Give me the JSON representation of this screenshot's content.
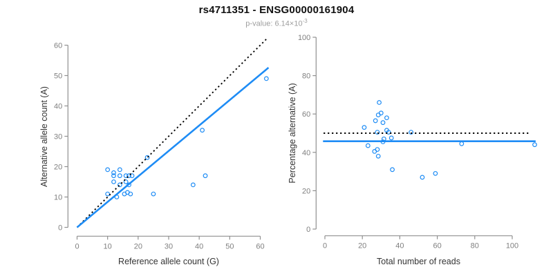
{
  "header": {
    "title": "rs4711351 - ENSG00000161904",
    "p_value_label": "p-value: ",
    "p_value_mantissa": "6.14×10",
    "p_value_exponent": "-3"
  },
  "colors": {
    "point_blue": "#1E8CF5",
    "fit_line_blue": "#1E8CF5",
    "reference_line_black": "#000000",
    "axis_line_gray": "#8f8f8f",
    "tick_label_gray": "#7f7f7f",
    "axis_title_color": "#333333",
    "title_color": "#111111",
    "subtitle_gray": "#9e9e9e"
  },
  "chart_data": [
    {
      "type": "scatter",
      "name": "allele-counts-scatter",
      "xlabel": "Reference allele count (G)",
      "ylabel": "Alternative allele count (A)",
      "xlim": [
        0,
        63
      ],
      "ylim": [
        0,
        63
      ],
      "xticks": [
        0,
        10,
        20,
        30,
        40,
        50,
        60
      ],
      "yticks": [
        0,
        10,
        20,
        30,
        40,
        50,
        60
      ],
      "grid": false,
      "points": [
        [
          10,
          19
        ],
        [
          12,
          18
        ],
        [
          12,
          17
        ],
        [
          14,
          19
        ],
        [
          14,
          17
        ],
        [
          12,
          15
        ],
        [
          14,
          14
        ],
        [
          10,
          11
        ],
        [
          13,
          10
        ],
        [
          16,
          17
        ],
        [
          17,
          17
        ],
        [
          18,
          17
        ],
        [
          16,
          15
        ],
        [
          17,
          14
        ],
        [
          15.5,
          11
        ],
        [
          16.5,
          11.5
        ],
        [
          17.5,
          11
        ],
        [
          23,
          23
        ],
        [
          25,
          11
        ],
        [
          38,
          14
        ],
        [
          41,
          32
        ],
        [
          42,
          17
        ],
        [
          62,
          49
        ]
      ],
      "lines": [
        {
          "name": "identity-line",
          "style": "dotted",
          "color": "#000000",
          "from": [
            0,
            0
          ],
          "to": [
            62,
            62
          ]
        },
        {
          "name": "regression-line",
          "style": "solid",
          "color": "#1E8CF5",
          "from": [
            0,
            0
          ],
          "to": [
            62.7,
            52.6
          ]
        }
      ]
    },
    {
      "type": "scatter",
      "name": "percentage-alternative-scatter",
      "xlabel": "Total number of reads",
      "ylabel": "Percentage alternative (A)",
      "xlim": [
        0,
        112
      ],
      "ylim": [
        0,
        100
      ],
      "xticks": [
        0,
        20,
        40,
        60,
        80,
        100
      ],
      "yticks": [
        0,
        20,
        40,
        60,
        80,
        100
      ],
      "grid": false,
      "points": [
        [
          21,
          53
        ],
        [
          23,
          43.5
        ],
        [
          26.5,
          40.5
        ],
        [
          27,
          56.5
        ],
        [
          28,
          50.5
        ],
        [
          28,
          41.5
        ],
        [
          28.5,
          38
        ],
        [
          29,
          66
        ],
        [
          28.5,
          59.5
        ],
        [
          30,
          60.5
        ],
        [
          31,
          45.5
        ],
        [
          31.5,
          47
        ],
        [
          31,
          55.5
        ],
        [
          33,
          58
        ],
        [
          33,
          51.5
        ],
        [
          34,
          50.5
        ],
        [
          35.5,
          47.5
        ],
        [
          36,
          31
        ],
        [
          46,
          50.5
        ],
        [
          52,
          27
        ],
        [
          59,
          29
        ],
        [
          73,
          44.5
        ],
        [
          112,
          44
        ]
      ],
      "lines": [
        {
          "name": "fifty-percent-line",
          "style": "dotted",
          "color": "#000000",
          "from": [
            -0.7,
            50
          ],
          "to": [
            109.5,
            50
          ]
        },
        {
          "name": "mean-percentage-line",
          "style": "solid",
          "color": "#1E8CF5",
          "from": [
            -1,
            45.8
          ],
          "to": [
            112.5,
            45.8
          ]
        }
      ]
    }
  ]
}
